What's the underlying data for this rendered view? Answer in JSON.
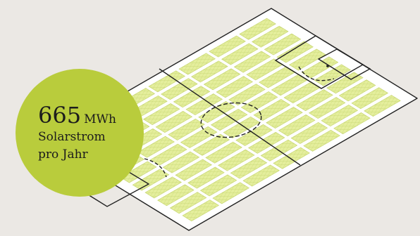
{
  "colors": {
    "background": "#ebe8e4",
    "field": "#ffffff",
    "panel": "#e4ee9c",
    "panel_grid": "#c3d36b",
    "line": "#222222",
    "badge": "#b9cc3c"
  },
  "badge": {
    "value": "665",
    "unit": "MWh",
    "line1": "Solarstrom",
    "line2": "pro Jahr"
  }
}
